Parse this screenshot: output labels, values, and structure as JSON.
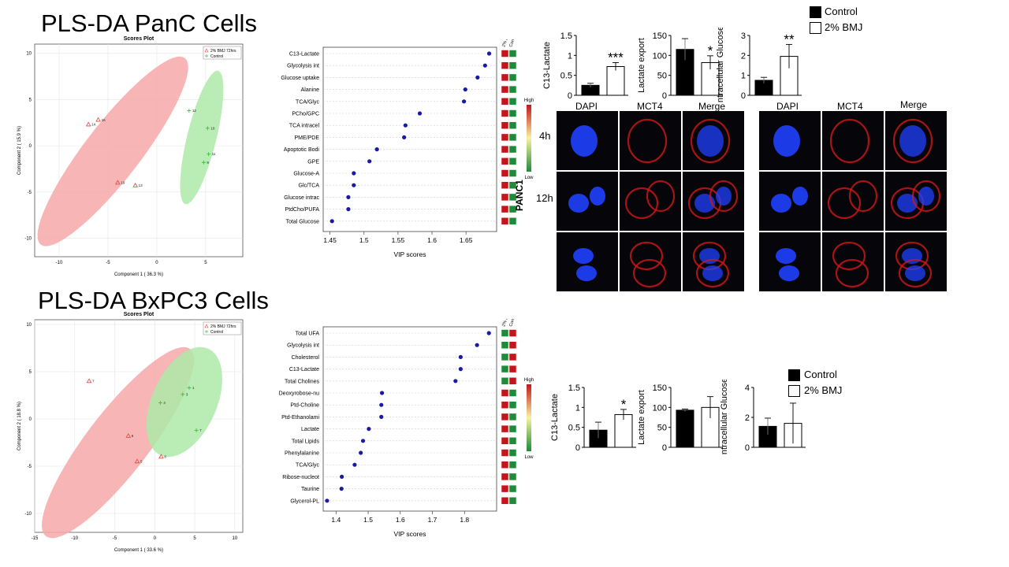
{
  "titles": {
    "panc": "PLS-DA PanC Cells",
    "bxpc3": "PLS-DA BxPC3 Cells"
  },
  "colors": {
    "bmj": "#e8443d",
    "control": "#3fbf3f",
    "bmj_ellipse": "#f7a8a8",
    "control_ellipse": "#aeeaa8",
    "vip_dot": "#1a1aa6",
    "bar_control": "#000000",
    "bar_bmj": "#ffffff",
    "heat_high": "#c4151c",
    "heat_low": "#1e8a3a",
    "dapi": "#2040ff",
    "mct4": "#d01818"
  },
  "scores_labels": {
    "title": "Scores Plot",
    "legend_bmj": "2% BMJ 72hrs",
    "legend_control": "Control"
  },
  "vip_labels": {
    "xlabel": "VIP scores",
    "col1": "2% BMJ 72hrs",
    "col2": "Control",
    "high": "High",
    "low": "Low"
  },
  "micro": {
    "dapi": "DAPI",
    "mct4": "MCT4",
    "merge": "Merge",
    "t4": "4h",
    "t12": "12h",
    "cell_line": "PANC1"
  },
  "bar_legend": {
    "control": "Control",
    "bmj": "2% BMJ"
  },
  "chart_data": [
    {
      "type": "scatter",
      "id": "panc_scores",
      "title": "Scores Plot",
      "xlabel": "Component 1 ( 36.3 %)",
      "ylabel": "Component 2 ( 15.9 %)",
      "xlim": [
        -12.5,
        8.8
      ],
      "ylim": [
        -12,
        11
      ],
      "xticks": [
        -10,
        -5,
        0,
        5
      ],
      "yticks": [
        -10,
        -5,
        0,
        5,
        10
      ],
      "legend_placement": "top-right",
      "series": [
        {
          "name": "2% BMJ 72hrs",
          "points": [
            {
              "x": -6.0,
              "y": 2.8,
              "label": "16"
            },
            {
              "x": -7.0,
              "y": 2.3,
              "label": "14"
            },
            {
              "x": -4.0,
              "y": -4.0,
              "label": "19"
            },
            {
              "x": -2.2,
              "y": -4.3,
              "label": "13"
            }
          ]
        },
        {
          "name": "Control",
          "points": [
            {
              "x": 3.3,
              "y": 3.8,
              "label": "12"
            },
            {
              "x": 5.2,
              "y": 1.9,
              "label": "10"
            },
            {
              "x": 5.3,
              "y": -0.9,
              "label": "11"
            },
            {
              "x": 4.8,
              "y": -1.8,
              "label": "9"
            }
          ]
        }
      ],
      "ellipses": [
        {
          "series": "2% BMJ 72hrs",
          "cx": -4.5,
          "cy": -0.6,
          "rx": 12.5,
          "ry": 2.9,
          "angle_deg": 54
        },
        {
          "series": "Control",
          "cx": 4.6,
          "cy": 0.9,
          "rx": 7.4,
          "ry": 1.5,
          "angle_deg": 77
        }
      ]
    },
    {
      "type": "scatter",
      "id": "bxpc3_scores",
      "title": "Scores Plot",
      "xlabel": "Component 1 ( 33.6 %)",
      "ylabel": "Component 2 ( 18.8 %)",
      "xlim": [
        -15,
        11
      ],
      "ylim": [
        -12,
        10.5
      ],
      "xticks": [
        -15,
        -10,
        -5,
        0,
        5,
        10
      ],
      "yticks": [
        -10,
        -5,
        0,
        5,
        10
      ],
      "legend_placement": "top-right",
      "series": [
        {
          "name": "2% BMJ 72hrs",
          "points": [
            {
              "x": -8.2,
              "y": 4.0,
              "label": "7"
            },
            {
              "x": -3.3,
              "y": -1.8,
              "label": "6"
            },
            {
              "x": -2.2,
              "y": -4.5,
              "label": "5"
            },
            {
              "x": 0.8,
              "y": -4.0,
              "label": "8"
            }
          ]
        },
        {
          "name": "Control",
          "points": [
            {
              "x": 4.3,
              "y": 3.3,
              "label": "1"
            },
            {
              "x": 3.5,
              "y": 2.6,
              "label": "3"
            },
            {
              "x": 0.7,
              "y": 1.7,
              "label": "4"
            },
            {
              "x": 5.2,
              "y": -1.2,
              "label": "7"
            }
          ]
        }
      ],
      "ellipses": [
        {
          "series": "2% BMJ 72hrs",
          "cx": -4.6,
          "cy": -2.5,
          "rx": 13.4,
          "ry": 3.6,
          "angle_deg": 47
        },
        {
          "series": "Control",
          "cx": 3.7,
          "cy": 1.8,
          "rx": 6.4,
          "ry": 3.9,
          "angle_deg": 58
        }
      ]
    },
    {
      "type": "scatter",
      "id": "panc_vip",
      "xlabel": "VIP scores",
      "xlim": [
        1.44,
        1.695
      ],
      "xticks": [
        1.45,
        1.5,
        1.55,
        1.6,
        1.65
      ],
      "categories": [
        "C13-Lactate",
        "Glycolysis int",
        "Glucose uptake",
        "Alanine",
        "TCA/Glyc",
        "PCho/GPC",
        "TCA intracel",
        "PME/PDE",
        "Apoptotic Bodi",
        "GPE",
        "Glucose-A",
        "Glc/TCA",
        "Glucose intrac",
        "PtdCho/PUFA",
        "Total Glucose"
      ],
      "values": [
        1.684,
        1.678,
        1.667,
        1.649,
        1.647,
        1.582,
        1.561,
        1.559,
        1.519,
        1.508,
        1.485,
        1.485,
        1.477,
        1.477,
        1.453
      ],
      "heatmap": [
        [
          "high",
          "low"
        ],
        [
          "high",
          "low"
        ],
        [
          "high",
          "low"
        ],
        [
          "high",
          "low"
        ],
        [
          "high",
          "low"
        ],
        [
          "high",
          "low"
        ],
        [
          "high",
          "low"
        ],
        [
          "high",
          "low"
        ],
        [
          "high",
          "low"
        ],
        [
          "high",
          "low"
        ],
        [
          "high",
          "low"
        ],
        [
          "high",
          "low"
        ],
        [
          "high",
          "low"
        ],
        [
          "high",
          "low"
        ],
        [
          "high",
          "low"
        ]
      ]
    },
    {
      "type": "scatter",
      "id": "bxpc3_vip",
      "xlabel": "VIP scores",
      "xlim": [
        1.36,
        1.9
      ],
      "xticks": [
        1.4,
        1.5,
        1.6,
        1.7,
        1.8
      ],
      "categories": [
        "Total UFA",
        "Glycolysis int",
        "Cholesterol",
        "C13-Lactate",
        "Total Cholines",
        "Deoxyrobose-nu",
        "Ptd-Choline",
        "Ptd-Ethanolami",
        "Lactate",
        "Total Lipids",
        "Phenylalanine",
        "TCA/Glyc",
        "Ribose-nucleot",
        "Taurine",
        "Glycerol-PL"
      ],
      "values": [
        1.876,
        1.839,
        1.788,
        1.788,
        1.772,
        1.543,
        1.541,
        1.541,
        1.502,
        1.484,
        1.477,
        1.458,
        1.418,
        1.417,
        1.372
      ],
      "heatmap": [
        [
          "low",
          "high"
        ],
        [
          "low",
          "high"
        ],
        [
          "low",
          "high"
        ],
        [
          "low",
          "high"
        ],
        [
          "low",
          "high"
        ],
        [
          "high",
          "low"
        ],
        [
          "high",
          "low"
        ],
        [
          "high",
          "low"
        ],
        [
          "high",
          "low"
        ],
        [
          "high",
          "low"
        ],
        [
          "high",
          "low"
        ],
        [
          "high",
          "low"
        ],
        [
          "high",
          "low"
        ],
        [
          "high",
          "low"
        ],
        [
          "high",
          "low"
        ]
      ]
    },
    {
      "type": "bar",
      "id": "panc_c13",
      "ylabel": "C13-Lactate",
      "ylim": [
        0,
        1.5
      ],
      "yticks": [
        0,
        0.5,
        1,
        1.5
      ],
      "series": [
        {
          "name": "Control",
          "value": 0.25,
          "error": 0.05
        },
        {
          "name": "2% BMJ",
          "value": 0.72,
          "error": 0.1
        }
      ],
      "annotation": "***"
    },
    {
      "type": "bar",
      "id": "panc_lac",
      "ylabel": "Lactate export",
      "ylim": [
        0,
        150
      ],
      "yticks": [
        0,
        50,
        100,
        150
      ],
      "series": [
        {
          "name": "Control",
          "value": 115,
          "error": 27
        },
        {
          "name": "2% BMJ",
          "value": 82,
          "error": 17
        }
      ],
      "annotation": "*"
    },
    {
      "type": "bar",
      "id": "panc_glc",
      "ylabel": "Intracellular Glucose",
      "ylim": [
        0,
        3
      ],
      "yticks": [
        0,
        1,
        2,
        3
      ],
      "series": [
        {
          "name": "Control",
          "value": 0.75,
          "error": 0.15
        },
        {
          "name": "2% BMJ",
          "value": 1.95,
          "error": 0.6
        }
      ],
      "annotation": "**"
    },
    {
      "type": "bar",
      "id": "bx_c13",
      "ylabel": "C13-Lactate",
      "ylim": [
        0,
        1.5
      ],
      "yticks": [
        0,
        0.5,
        1,
        1.5
      ],
      "series": [
        {
          "name": "Control",
          "value": 0.43,
          "error": 0.2
        },
        {
          "name": "2% BMJ",
          "value": 0.82,
          "error": 0.13
        }
      ],
      "annotation": "*"
    },
    {
      "type": "bar",
      "id": "bx_lac",
      "ylabel": "Lactate export",
      "ylim": [
        0,
        150
      ],
      "yticks": [
        0,
        50,
        100,
        150
      ],
      "series": [
        {
          "name": "Control",
          "value": 93,
          "error": 3
        },
        {
          "name": "2% BMJ",
          "value": 100,
          "error": 27
        }
      ],
      "annotation": ""
    },
    {
      "type": "bar",
      "id": "bx_glc",
      "ylabel": "Intracellular Glucose",
      "ylim": [
        0,
        4
      ],
      "yticks": [
        0,
        2,
        4
      ],
      "series": [
        {
          "name": "Control",
          "value": 1.4,
          "error": 0.55
        },
        {
          "name": "2% BMJ",
          "value": 1.6,
          "error": 1.35
        }
      ],
      "annotation": ""
    }
  ]
}
